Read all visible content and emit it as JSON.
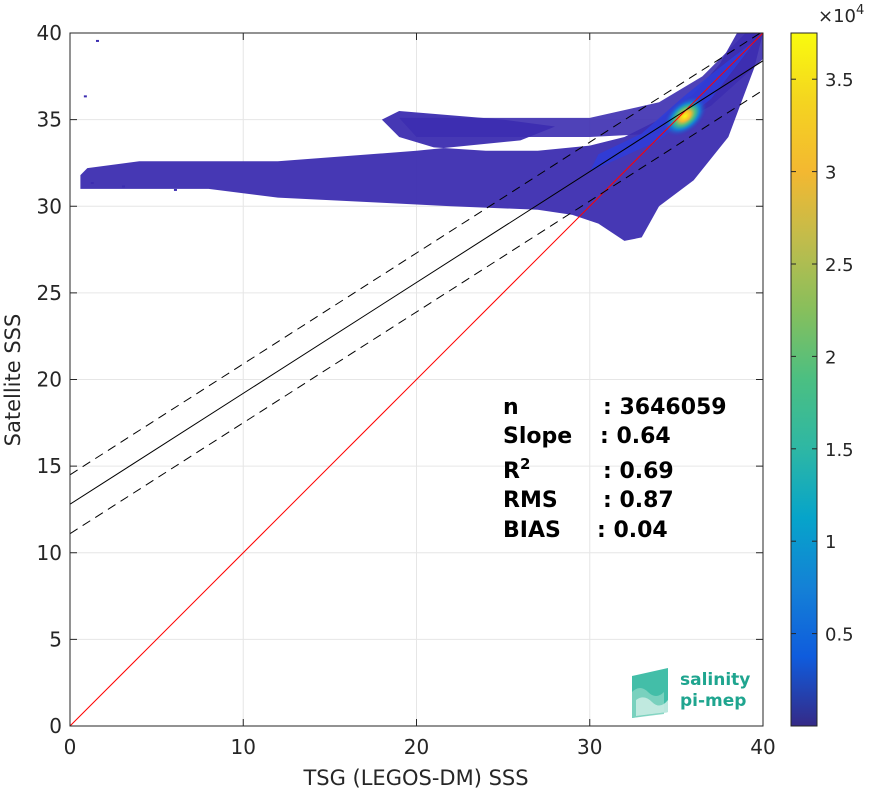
{
  "chart_data": {
    "type": "heatmap",
    "title": "",
    "xlabel": "TSG (LEGOS-DM) SSS",
    "ylabel": "Satellite SSS",
    "xlim": [
      0,
      40
    ],
    "ylim": [
      0,
      40
    ],
    "xticks": [
      0,
      10,
      20,
      30,
      40
    ],
    "yticks": [
      0,
      5,
      10,
      15,
      20,
      25,
      30,
      35,
      40
    ],
    "grid": true,
    "colorbar": {
      "colormap": "parula",
      "range": [
        0,
        37500
      ],
      "ticks": [
        0.5,
        1,
        1.5,
        2,
        2.5,
        3,
        3.5
      ],
      "tick_labels": [
        "0.5",
        "1",
        "1.5",
        "2",
        "2.5",
        "3",
        "3.5"
      ],
      "exponent_label": "×10",
      "exponent": "4"
    },
    "lines": [
      {
        "name": "identity",
        "color": "#ff0000",
        "style": "solid",
        "x": [
          0,
          40
        ],
        "y": [
          0,
          40
        ]
      },
      {
        "name": "regression",
        "color": "#000000",
        "style": "solid",
        "x": [
          0,
          40
        ],
        "y": [
          12.8,
          38.4
        ]
      },
      {
        "name": "regression+rms-upper",
        "color": "#000000",
        "style": "dashed",
        "x": [
          0,
          40
        ],
        "y": [
          14.5,
          40.1
        ]
      },
      {
        "name": "regression-rms-lower",
        "color": "#000000",
        "style": "dashed",
        "x": [
          0,
          40
        ],
        "y": [
          11.1,
          36.7
        ]
      }
    ],
    "stats": [
      {
        "label": "n",
        "sup": "",
        "value": ": 3646059"
      },
      {
        "label": "Slope",
        "sup": "",
        "value": ": 0.64"
      },
      {
        "label": "R",
        "sup": "2",
        "value": ": 0.69"
      },
      {
        "label": "RMS",
        "sup": "",
        "value": ": 0.87"
      },
      {
        "label": "BIAS",
        "sup": "",
        "value": ": 0.04"
      }
    ],
    "density_peak": {
      "x": 35.5,
      "y": 35.2
    }
  },
  "logo": {
    "line1": "salinity",
    "line2": "pi-mep"
  },
  "colors": {
    "identity": "#ff0000",
    "grid": "#e6e6e6",
    "axis": "#262626",
    "logo": "#1fa58f"
  }
}
